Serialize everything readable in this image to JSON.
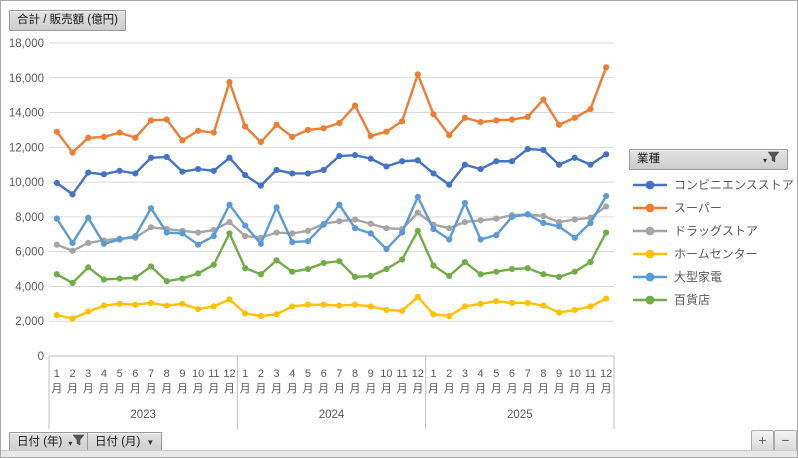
{
  "title": "合計 / 販売額 (億円)",
  "legend": {
    "header": "業種"
  },
  "field_buttons": {
    "year": "日付 (年)",
    "month": "日付 (月)"
  },
  "zoom_buttons": {
    "plus": "+",
    "minus": "−"
  },
  "chart_data": {
    "type": "line",
    "title": "合計 / 販売額 (億円)",
    "ylabel": "販売額 (億円)",
    "ylim": [
      0,
      18000
    ],
    "ytick_step": 2000,
    "grid": true,
    "legend_position": "right",
    "years": [
      "2023",
      "2024",
      "2025"
    ],
    "months_per_year": 12,
    "month_label_suffix": "月",
    "series": [
      {
        "name": "コンビニエンスストア",
        "color": "#4472C4",
        "values": [
          9950,
          9300,
          10550,
          10450,
          10650,
          10500,
          11400,
          11450,
          10600,
          10750,
          10650,
          11400,
          10400,
          9800,
          10700,
          10500,
          10500,
          10700,
          11500,
          11550,
          11350,
          10900,
          11200,
          11250,
          10500,
          9850,
          11000,
          10750,
          11200,
          11200,
          11900,
          11850,
          11000,
          11400,
          11000,
          11600
        ]
      },
      {
        "name": "スーパー",
        "color": "#ED7D31",
        "values": [
          12900,
          11700,
          12550,
          12600,
          12850,
          12550,
          13550,
          13600,
          12400,
          12950,
          12850,
          15750,
          13200,
          12300,
          13300,
          12600,
          13000,
          13100,
          13400,
          14400,
          12650,
          12900,
          13500,
          16200,
          13900,
          12700,
          13700,
          13450,
          13550,
          13600,
          13750,
          14750,
          13300,
          13700,
          14200,
          16600
        ]
      },
      {
        "name": "ドラッグストア",
        "color": "#A5A5A5",
        "values": [
          6400,
          6050,
          6500,
          6650,
          6750,
          6800,
          7400,
          7300,
          7200,
          7100,
          7250,
          7700,
          6900,
          6800,
          7100,
          7050,
          7200,
          7600,
          7750,
          7850,
          7600,
          7350,
          7300,
          8250,
          7550,
          7350,
          7700,
          7800,
          7900,
          8100,
          8150,
          8050,
          7700,
          7850,
          7950,
          8600
        ]
      },
      {
        "name": "ホームセンター",
        "color": "#FFC000",
        "values": [
          2350,
          2150,
          2550,
          2900,
          3000,
          2950,
          3050,
          2900,
          3000,
          2700,
          2850,
          3250,
          2450,
          2300,
          2400,
          2850,
          2950,
          2950,
          2900,
          2950,
          2850,
          2650,
          2600,
          3400,
          2400,
          2300,
          2850,
          3000,
          3150,
          3050,
          3050,
          2900,
          2500,
          2650,
          2850,
          3300
        ]
      },
      {
        "name": "大型家電",
        "color": "#5B9BD5",
        "values": [
          7900,
          6500,
          7950,
          6450,
          6700,
          6900,
          8500,
          7100,
          7050,
          6400,
          6900,
          8700,
          7500,
          6450,
          8550,
          6550,
          6600,
          7550,
          8700,
          7350,
          7050,
          6150,
          7100,
          9150,
          7300,
          6700,
          8800,
          6700,
          6950,
          8000,
          8150,
          7650,
          7450,
          6800,
          7650,
          9200
        ]
      },
      {
        "name": "百貨店",
        "color": "#70AD47",
        "values": [
          4700,
          4200,
          5100,
          4400,
          4450,
          4500,
          5150,
          4300,
          4450,
          4750,
          5250,
          7050,
          5050,
          4700,
          5500,
          4850,
          5000,
          5350,
          5450,
          4550,
          4600,
          5000,
          5550,
          7200,
          5200,
          4600,
          5400,
          4700,
          4850,
          5000,
          5050,
          4700,
          4550,
          4850,
          5400,
          7100
        ]
      }
    ]
  }
}
